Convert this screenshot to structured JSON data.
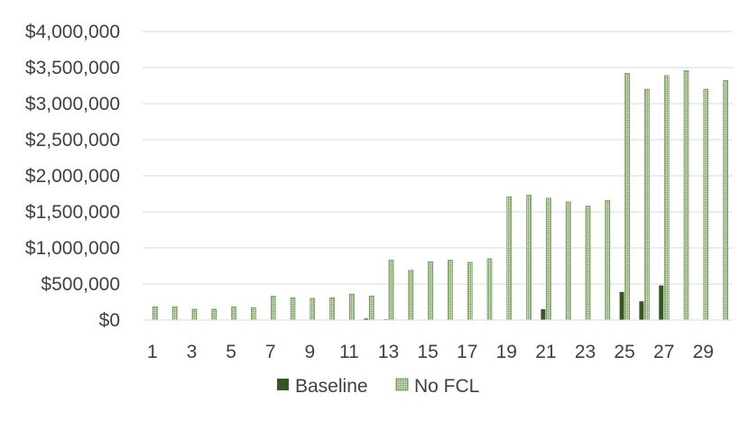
{
  "chart_data": {
    "type": "bar",
    "title": "",
    "xlabel": "",
    "ylabel": "",
    "ylim": [
      0,
      4000000
    ],
    "y_ticks": [
      "$0",
      "$500,000",
      "$1,000,000",
      "$1,500,000",
      "$2,000,000",
      "$2,500,000",
      "$3,000,000",
      "$3,500,000",
      "$4,000,000"
    ],
    "grid": true,
    "legend_position": "bottom",
    "categories": [
      1,
      2,
      3,
      4,
      5,
      6,
      7,
      8,
      9,
      10,
      11,
      12,
      13,
      14,
      15,
      16,
      17,
      18,
      19,
      20,
      21,
      22,
      23,
      24,
      25,
      26,
      27,
      28,
      29,
      30
    ],
    "x_tick_labels": [
      "1",
      "3",
      "5",
      "7",
      "9",
      "11",
      "13",
      "15",
      "17",
      "19",
      "21",
      "23",
      "25",
      "27",
      "29"
    ],
    "series": [
      {
        "name": "Baseline",
        "color": "#375623",
        "pattern": "solid",
        "values": [
          0,
          0,
          0,
          0,
          5000,
          5000,
          0,
          0,
          0,
          5000,
          5000,
          20000,
          10000,
          0,
          0,
          0,
          5000,
          0,
          5000,
          0,
          150000,
          0,
          0,
          0,
          390000,
          260000,
          480000,
          0,
          0,
          0
        ]
      },
      {
        "name": "No FCL",
        "color": "#548235",
        "pattern": "grid",
        "values": [
          185000,
          185000,
          150000,
          150000,
          185000,
          170000,
          330000,
          310000,
          300000,
          310000,
          360000,
          335000,
          830000,
          690000,
          810000,
          830000,
          800000,
          850000,
          1710000,
          1730000,
          1690000,
          1640000,
          1580000,
          1660000,
          3420000,
          3200000,
          3390000,
          3460000,
          3200000,
          3320000
        ]
      }
    ]
  }
}
